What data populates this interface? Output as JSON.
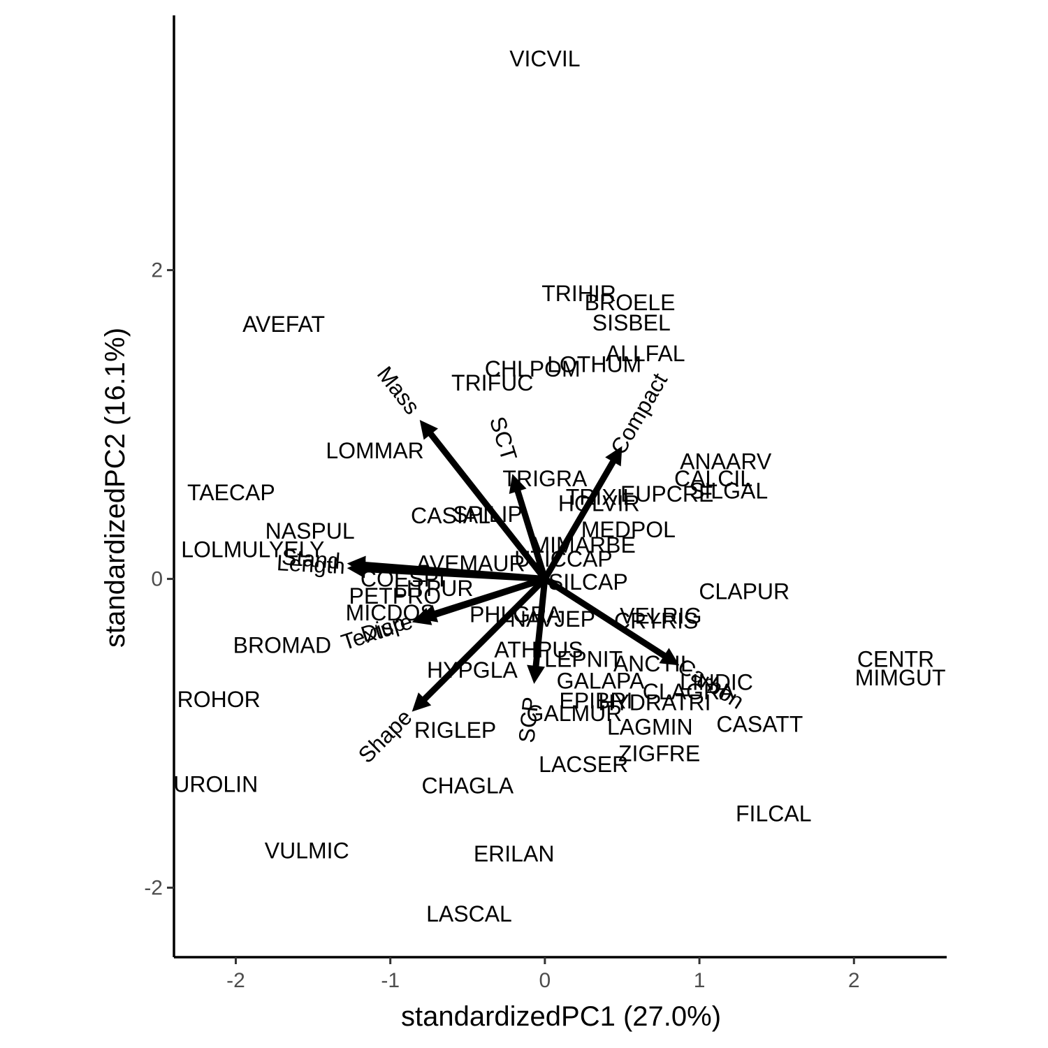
{
  "chart_data": {
    "type": "scatter",
    "title": "",
    "xlabel": "standardizedPC1 (27.0%)",
    "ylabel": "standardizedPC2 (16.1%)",
    "xlim": [
      -2.4,
      2.6
    ],
    "ylim": [
      -2.45,
      3.65
    ],
    "x_ticks": [
      -2,
      -1,
      0,
      1,
      2
    ],
    "y_ticks": [
      -2,
      0,
      2
    ],
    "x_tick_labels": [
      "-2",
      "-1",
      "0",
      "1",
      "2"
    ],
    "y_tick_labels": [
      "-2",
      "0",
      "2"
    ],
    "grid": false,
    "points": [
      {
        "label": "VICVIL",
        "x": 0.0,
        "y": 3.37
      },
      {
        "label": "TRIHIR",
        "x": 0.22,
        "y": 1.85
      },
      {
        "label": "BROELE",
        "x": 0.55,
        "y": 1.79
      },
      {
        "label": "SISBEL",
        "x": 0.56,
        "y": 1.66
      },
      {
        "label": "AVEFAT",
        "x": -1.69,
        "y": 1.65
      },
      {
        "label": "ALLFAL",
        "x": 0.65,
        "y": 1.46
      },
      {
        "label": "LOTHUM",
        "x": 0.32,
        "y": 1.39
      },
      {
        "label": "CHLPOM",
        "x": -0.08,
        "y": 1.36
      },
      {
        "label": "TRIFUC",
        "x": -0.34,
        "y": 1.27
      },
      {
        "label": "LOMMAR",
        "x": -1.1,
        "y": 0.83
      },
      {
        "label": "ANAARV",
        "x": 1.17,
        "y": 0.76
      },
      {
        "label": "TRIGRA",
        "x": 0.0,
        "y": 0.65
      },
      {
        "label": "CALCIL",
        "x": 1.09,
        "y": 0.65
      },
      {
        "label": "TAECAP",
        "x": -2.03,
        "y": 0.56
      },
      {
        "label": "SILGAL",
        "x": 1.19,
        "y": 0.57
      },
      {
        "label": "EUPCRE",
        "x": 0.79,
        "y": 0.55
      },
      {
        "label": "TRIXIL",
        "x": 0.36,
        "y": 0.53
      },
      {
        "label": "HOLVIR",
        "x": 0.35,
        "y": 0.49
      },
      {
        "label": "CASIAL",
        "x": -0.61,
        "y": 0.41
      },
      {
        "label": "SPILIP",
        "x": -0.37,
        "y": 0.42
      },
      {
        "label": "NASPUL",
        "x": -1.52,
        "y": 0.31
      },
      {
        "label": "MEDPOL",
        "x": 0.54,
        "y": 0.32
      },
      {
        "label": "MIMARBE",
        "x": 0.25,
        "y": 0.22
      },
      {
        "label": "LOLMULYELY",
        "x": -1.89,
        "y": 0.19
      },
      {
        "label": "UTICCAP",
        "x": 0.12,
        "y": 0.13
      },
      {
        "label": "AVEMAUR",
        "x": -0.48,
        "y": 0.1
      },
      {
        "label": "SILCAP",
        "x": 0.28,
        "y": -0.02
      },
      {
        "label": "COESPI",
        "x": -0.92,
        "y": 0.0
      },
      {
        "label": "LITPUR",
        "x": -0.72,
        "y": -0.06
      },
      {
        "label": "CLAPUR",
        "x": 1.29,
        "y": -0.08
      },
      {
        "label": "PETPRO",
        "x": -0.97,
        "y": -0.11
      },
      {
        "label": "MICDOS",
        "x": -1.0,
        "y": -0.22
      },
      {
        "label": "PHLGRA",
        "x": -0.19,
        "y": -0.23
      },
      {
        "label": "NAVJEP",
        "x": 0.05,
        "y": -0.26
      },
      {
        "label": "VELRIG",
        "x": 0.75,
        "y": -0.24
      },
      {
        "label": "CRYRIS",
        "x": 0.72,
        "y": -0.27
      },
      {
        "label": "BROMAD",
        "x": -1.7,
        "y": -0.43
      },
      {
        "label": "ATHPUS",
        "x": -0.04,
        "y": -0.46
      },
      {
        "label": "LEPNIT",
        "x": 0.25,
        "y": -0.52
      },
      {
        "label": "ANCTIL",
        "x": 0.7,
        "y": -0.55
      },
      {
        "label": "CENTR",
        "x": 2.27,
        "y": -0.52
      },
      {
        "label": "HYPGLA",
        "x": -0.47,
        "y": -0.59
      },
      {
        "label": "MIMGUT",
        "x": 2.3,
        "y": -0.64
      },
      {
        "label": "GALAPA",
        "x": 0.36,
        "y": -0.66
      },
      {
        "label": "LINDIC",
        "x": 1.11,
        "y": -0.67
      },
      {
        "label": "CLAGRA",
        "x": 0.93,
        "y": -0.73
      },
      {
        "label": "HYDRATRI",
        "x": 0.71,
        "y": -0.8
      },
      {
        "label": "EPIBRI",
        "x": 0.33,
        "y": -0.79
      },
      {
        "label": "GALMUR",
        "x": 0.19,
        "y": -0.87
      },
      {
        "label": "CASATT",
        "x": 1.39,
        "y": -0.94
      },
      {
        "label": "ROHOR",
        "x": -2.11,
        "y": -0.78
      },
      {
        "label": "RIGLEP",
        "x": -0.58,
        "y": -0.98
      },
      {
        "label": "LAGMIN",
        "x": 0.68,
        "y": -0.96
      },
      {
        "label": "ZIGFRE",
        "x": 0.74,
        "y": -1.13
      },
      {
        "label": "LACSER",
        "x": 0.25,
        "y": -1.2
      },
      {
        "label": "UROLIN",
        "x": -2.13,
        "y": -1.33
      },
      {
        "label": "CHAGLA",
        "x": -0.5,
        "y": -1.34
      },
      {
        "label": "FILCAL",
        "x": 1.48,
        "y": -1.52
      },
      {
        "label": "VULMIC",
        "x": -1.54,
        "y": -1.76
      },
      {
        "label": "ERILAN",
        "x": -0.2,
        "y": -1.78
      },
      {
        "label": "LASCAL",
        "x": -0.49,
        "y": -2.17
      }
    ],
    "vectors": [
      {
        "label": "Mass",
        "x": -0.81,
        "y": 1.03
      },
      {
        "label": "SCT",
        "x": -0.21,
        "y": 0.68
      },
      {
        "label": "Compact",
        "x": 0.5,
        "y": 0.86
      },
      {
        "label": "Stand",
        "x": -1.28,
        "y": 0.1
      },
      {
        "label": "Length",
        "x": -1.28,
        "y": 0.07
      },
      {
        "label": "Texture",
        "x": -0.86,
        "y": -0.28
      },
      {
        "label": "Disp",
        "x": -0.82,
        "y": -0.26
      },
      {
        "label": "Carbon",
        "x": 0.87,
        "y": -0.56
      },
      {
        "label": "SCP",
        "x": -0.07,
        "y": -0.68
      },
      {
        "label": "Shape",
        "x": -0.86,
        "y": -0.86
      }
    ]
  }
}
